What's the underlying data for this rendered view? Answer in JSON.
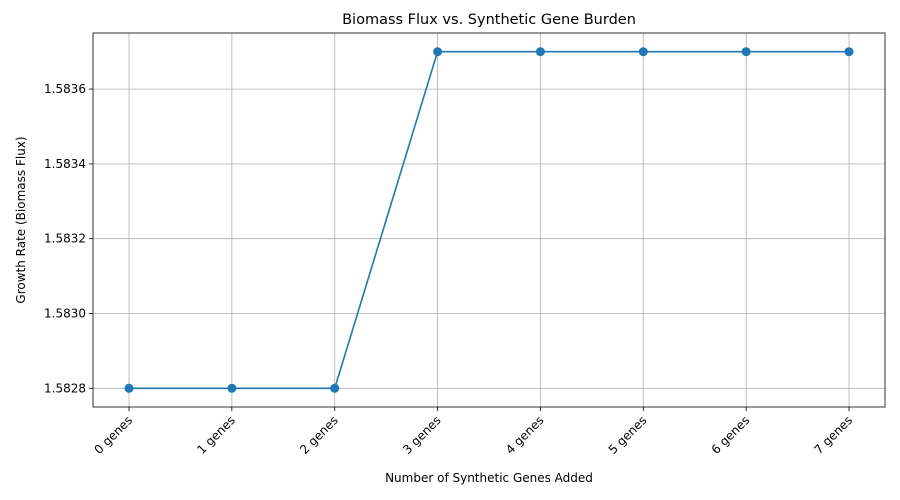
{
  "chart_data": {
    "type": "line",
    "title": "Biomass Flux vs. Synthetic Gene Burden",
    "xlabel": "Number of Synthetic Genes Added",
    "ylabel": "Growth Rate (Biomass Flux)",
    "categories": [
      "0 genes",
      "1 genes",
      "2 genes",
      "3 genes",
      "4 genes",
      "5 genes",
      "6 genes",
      "7 genes"
    ],
    "series": [
      {
        "values": [
          1.5828,
          1.5828,
          1.5828,
          1.5837,
          1.5837,
          1.5837,
          1.5837,
          1.5837
        ],
        "color": "#1f77b4",
        "marker": "circle"
      }
    ],
    "ylim": [
      1.58275,
      1.58375
    ],
    "yticks": [
      1.5828,
      1.583,
      1.5832,
      1.5834,
      1.5836
    ],
    "ytick_labels": [
      "1.5828",
      "1.5830",
      "1.5832",
      "1.5834",
      "1.5836"
    ],
    "grid": true,
    "legend": "none"
  }
}
